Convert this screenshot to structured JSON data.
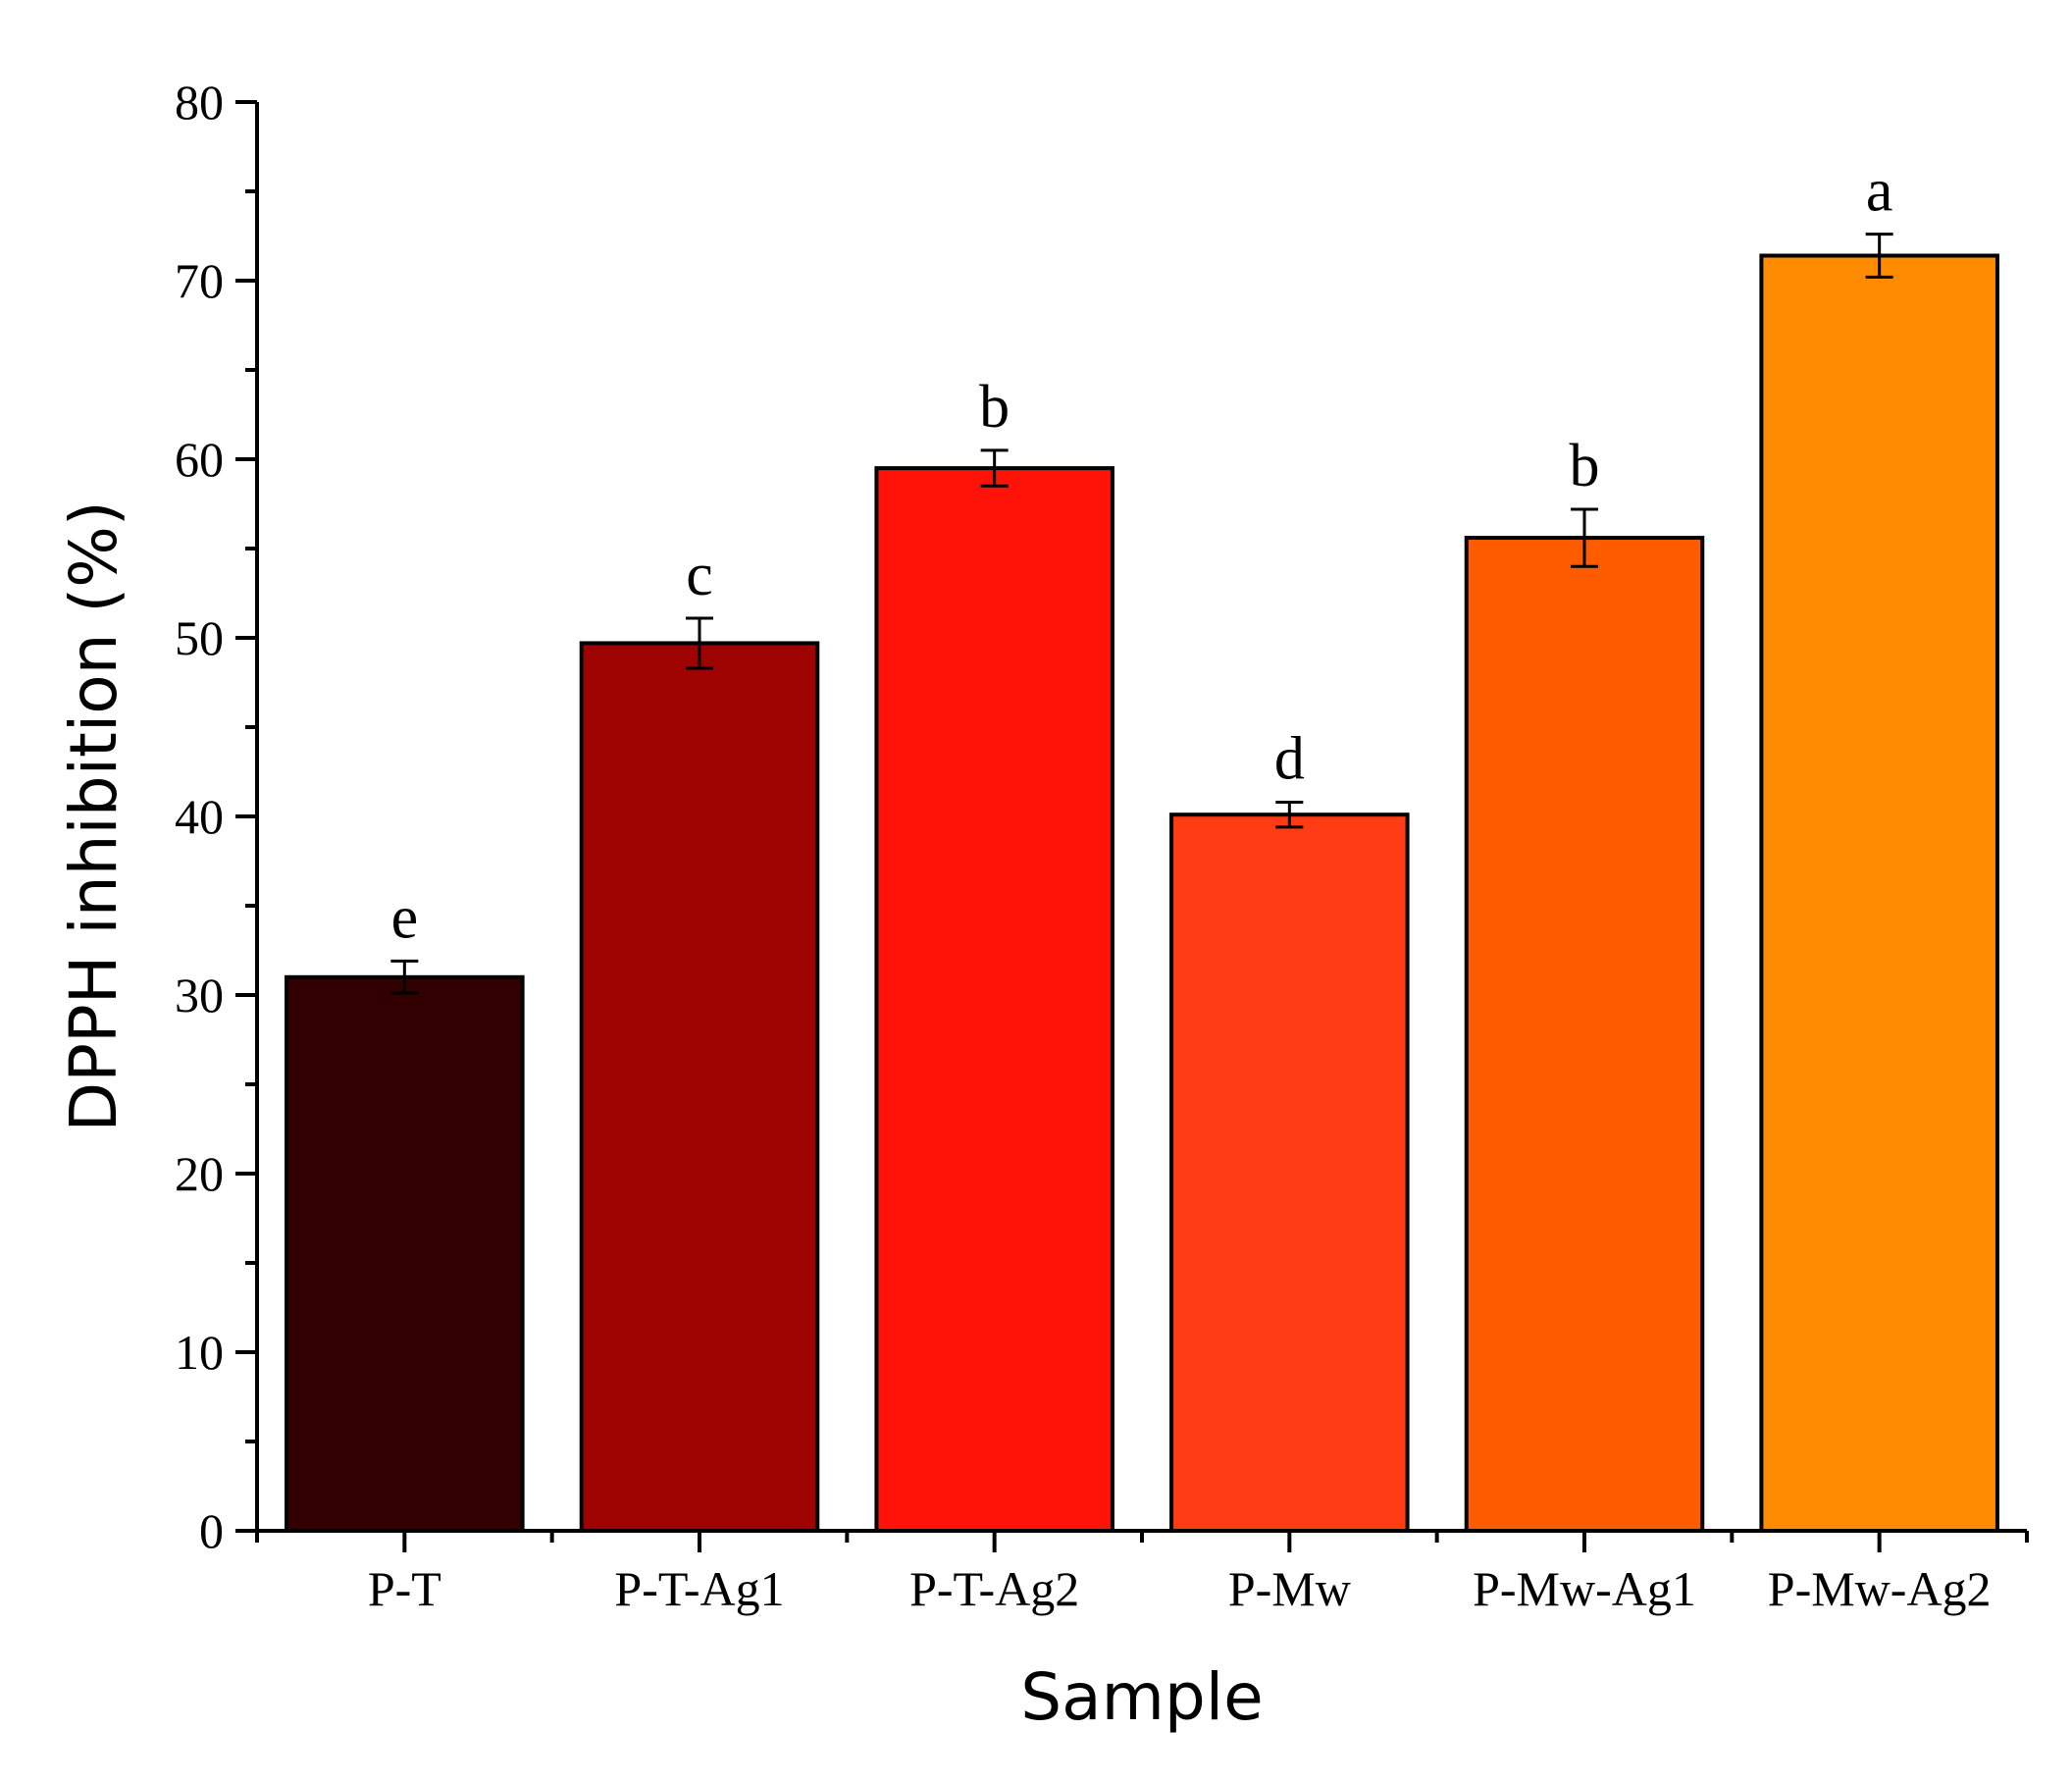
{
  "chart_data": {
    "type": "bar",
    "title": "",
    "xlabel": "Sample",
    "ylabel": "DPPH inhibition (%)",
    "ylim": [
      0,
      80
    ],
    "yticks": [
      0,
      10,
      20,
      30,
      40,
      50,
      60,
      70,
      80
    ],
    "grid": false,
    "categories": [
      "P-T",
      "P-T-Ag1",
      "P-T-Ag2",
      "P-Mw",
      "P-Mw-Ag1",
      "P-Mw-Ag2"
    ],
    "values": [
      31.0,
      49.7,
      59.5,
      40.1,
      55.6,
      71.4
    ],
    "errors": [
      0.9,
      1.4,
      1.0,
      0.7,
      1.6,
      1.2
    ],
    "significance_letters": [
      "e",
      "c",
      "b",
      "d",
      "b",
      "a"
    ],
    "colors": [
      "#330000",
      "#9e0302",
      "#ff1208",
      "#ff3c14",
      "#ff5c00",
      "#ff8c00"
    ]
  }
}
